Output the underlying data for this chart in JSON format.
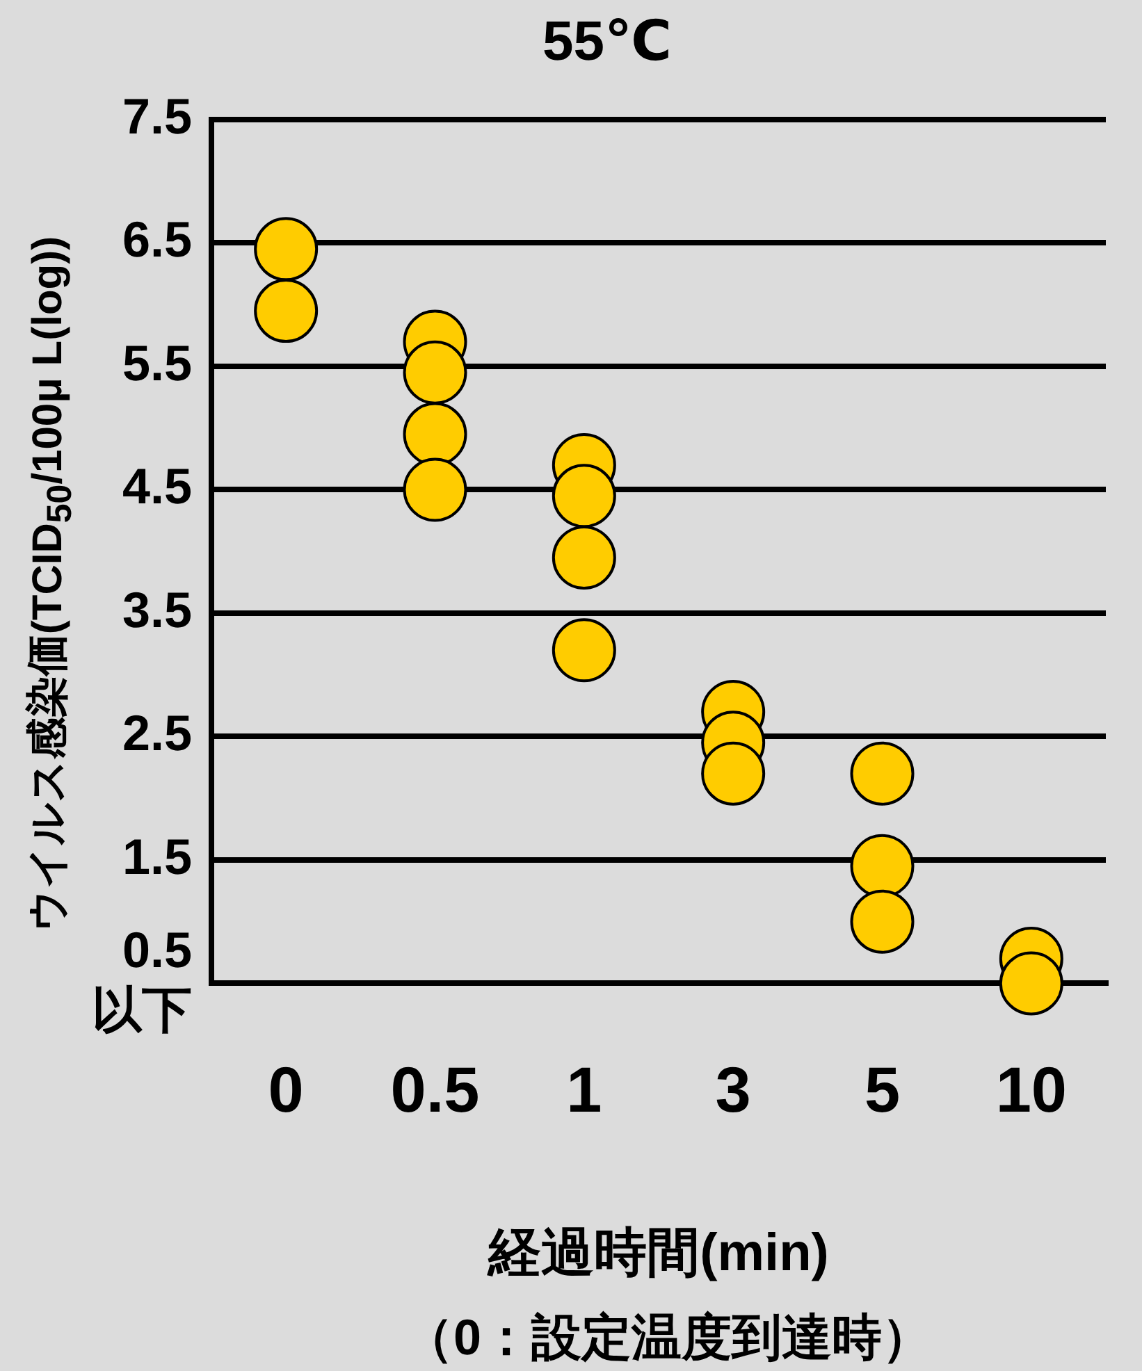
{
  "chart_data": {
    "type": "scatter",
    "title": "55℃",
    "xlabel": "経過時間(min)",
    "ylabel": "ウイルス感染価(TCID$_{50}$/100μ L(log))",
    "annotations": [
      "（0：設定温度到達時）"
    ],
    "categories": [
      "0",
      "0.5",
      "1",
      "3",
      "5",
      "10"
    ],
    "series": [
      {
        "color": "#ffcc00",
        "x": [
          "0",
          "0",
          "0.5",
          "0.5",
          "0.5",
          "0.5",
          "1",
          "1",
          "1",
          "1",
          "3",
          "3",
          "3",
          "5",
          "5",
          "5",
          "10",
          "10"
        ],
        "values": [
          6.45,
          5.95,
          5.7,
          5.45,
          4.95,
          4.5,
          4.7,
          4.45,
          3.95,
          3.2,
          2.7,
          2.45,
          2.2,
          2.2,
          1.45,
          1.0,
          0.7,
          0.5
        ]
      }
    ],
    "ylim": [
      0.5,
      7.5
    ],
    "yticks": [
      {
        "value": 0.5,
        "label": "0.5\n以下"
      },
      1.5,
      2.5,
      3.5,
      4.5,
      5.5,
      6.5,
      7.5
    ],
    "grid": "y",
    "legend": false,
    "marker": "circle"
  }
}
